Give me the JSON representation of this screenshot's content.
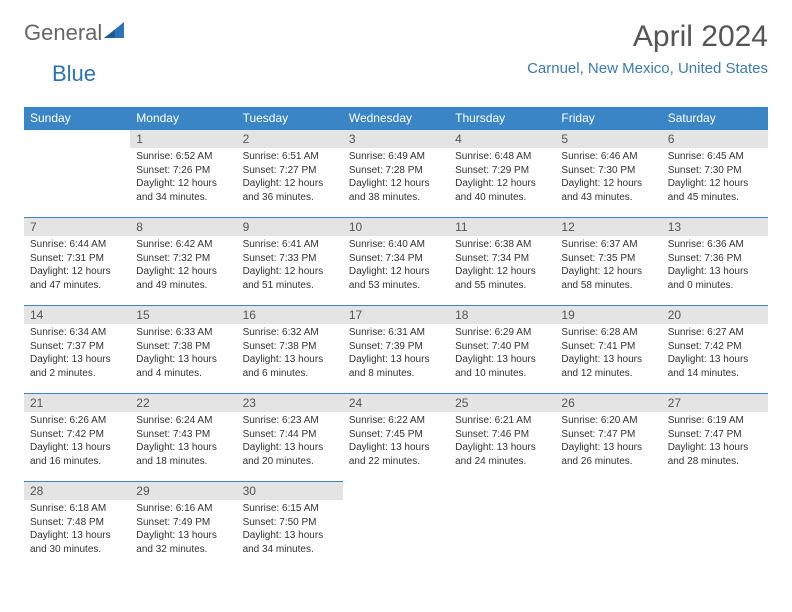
{
  "logo": {
    "text1": "General",
    "text2": "Blue"
  },
  "title": "April 2024",
  "location": "Carnuel, New Mexico, United States",
  "colors": {
    "header_bg": "#3a85c6",
    "header_text": "#ffffff",
    "daynum_bg": "#e4e4e4",
    "border": "#3a85c6",
    "location_color": "#3b7bb5",
    "title_color": "#555555"
  },
  "weekdays": [
    "Sunday",
    "Monday",
    "Tuesday",
    "Wednesday",
    "Thursday",
    "Friday",
    "Saturday"
  ],
  "weeks": [
    [
      {
        "day": "",
        "sunrise": "",
        "sunset": "",
        "daylight1": "",
        "daylight2": ""
      },
      {
        "day": "1",
        "sunrise": "Sunrise: 6:52 AM",
        "sunset": "Sunset: 7:26 PM",
        "daylight1": "Daylight: 12 hours",
        "daylight2": "and 34 minutes."
      },
      {
        "day": "2",
        "sunrise": "Sunrise: 6:51 AM",
        "sunset": "Sunset: 7:27 PM",
        "daylight1": "Daylight: 12 hours",
        "daylight2": "and 36 minutes."
      },
      {
        "day": "3",
        "sunrise": "Sunrise: 6:49 AM",
        "sunset": "Sunset: 7:28 PM",
        "daylight1": "Daylight: 12 hours",
        "daylight2": "and 38 minutes."
      },
      {
        "day": "4",
        "sunrise": "Sunrise: 6:48 AM",
        "sunset": "Sunset: 7:29 PM",
        "daylight1": "Daylight: 12 hours",
        "daylight2": "and 40 minutes."
      },
      {
        "day": "5",
        "sunrise": "Sunrise: 6:46 AM",
        "sunset": "Sunset: 7:30 PM",
        "daylight1": "Daylight: 12 hours",
        "daylight2": "and 43 minutes."
      },
      {
        "day": "6",
        "sunrise": "Sunrise: 6:45 AM",
        "sunset": "Sunset: 7:30 PM",
        "daylight1": "Daylight: 12 hours",
        "daylight2": "and 45 minutes."
      }
    ],
    [
      {
        "day": "7",
        "sunrise": "Sunrise: 6:44 AM",
        "sunset": "Sunset: 7:31 PM",
        "daylight1": "Daylight: 12 hours",
        "daylight2": "and 47 minutes."
      },
      {
        "day": "8",
        "sunrise": "Sunrise: 6:42 AM",
        "sunset": "Sunset: 7:32 PM",
        "daylight1": "Daylight: 12 hours",
        "daylight2": "and 49 minutes."
      },
      {
        "day": "9",
        "sunrise": "Sunrise: 6:41 AM",
        "sunset": "Sunset: 7:33 PM",
        "daylight1": "Daylight: 12 hours",
        "daylight2": "and 51 minutes."
      },
      {
        "day": "10",
        "sunrise": "Sunrise: 6:40 AM",
        "sunset": "Sunset: 7:34 PM",
        "daylight1": "Daylight: 12 hours",
        "daylight2": "and 53 minutes."
      },
      {
        "day": "11",
        "sunrise": "Sunrise: 6:38 AM",
        "sunset": "Sunset: 7:34 PM",
        "daylight1": "Daylight: 12 hours",
        "daylight2": "and 55 minutes."
      },
      {
        "day": "12",
        "sunrise": "Sunrise: 6:37 AM",
        "sunset": "Sunset: 7:35 PM",
        "daylight1": "Daylight: 12 hours",
        "daylight2": "and 58 minutes."
      },
      {
        "day": "13",
        "sunrise": "Sunrise: 6:36 AM",
        "sunset": "Sunset: 7:36 PM",
        "daylight1": "Daylight: 13 hours",
        "daylight2": "and 0 minutes."
      }
    ],
    [
      {
        "day": "14",
        "sunrise": "Sunrise: 6:34 AM",
        "sunset": "Sunset: 7:37 PM",
        "daylight1": "Daylight: 13 hours",
        "daylight2": "and 2 minutes."
      },
      {
        "day": "15",
        "sunrise": "Sunrise: 6:33 AM",
        "sunset": "Sunset: 7:38 PM",
        "daylight1": "Daylight: 13 hours",
        "daylight2": "and 4 minutes."
      },
      {
        "day": "16",
        "sunrise": "Sunrise: 6:32 AM",
        "sunset": "Sunset: 7:38 PM",
        "daylight1": "Daylight: 13 hours",
        "daylight2": "and 6 minutes."
      },
      {
        "day": "17",
        "sunrise": "Sunrise: 6:31 AM",
        "sunset": "Sunset: 7:39 PM",
        "daylight1": "Daylight: 13 hours",
        "daylight2": "and 8 minutes."
      },
      {
        "day": "18",
        "sunrise": "Sunrise: 6:29 AM",
        "sunset": "Sunset: 7:40 PM",
        "daylight1": "Daylight: 13 hours",
        "daylight2": "and 10 minutes."
      },
      {
        "day": "19",
        "sunrise": "Sunrise: 6:28 AM",
        "sunset": "Sunset: 7:41 PM",
        "daylight1": "Daylight: 13 hours",
        "daylight2": "and 12 minutes."
      },
      {
        "day": "20",
        "sunrise": "Sunrise: 6:27 AM",
        "sunset": "Sunset: 7:42 PM",
        "daylight1": "Daylight: 13 hours",
        "daylight2": "and 14 minutes."
      }
    ],
    [
      {
        "day": "21",
        "sunrise": "Sunrise: 6:26 AM",
        "sunset": "Sunset: 7:42 PM",
        "daylight1": "Daylight: 13 hours",
        "daylight2": "and 16 minutes."
      },
      {
        "day": "22",
        "sunrise": "Sunrise: 6:24 AM",
        "sunset": "Sunset: 7:43 PM",
        "daylight1": "Daylight: 13 hours",
        "daylight2": "and 18 minutes."
      },
      {
        "day": "23",
        "sunrise": "Sunrise: 6:23 AM",
        "sunset": "Sunset: 7:44 PM",
        "daylight1": "Daylight: 13 hours",
        "daylight2": "and 20 minutes."
      },
      {
        "day": "24",
        "sunrise": "Sunrise: 6:22 AM",
        "sunset": "Sunset: 7:45 PM",
        "daylight1": "Daylight: 13 hours",
        "daylight2": "and 22 minutes."
      },
      {
        "day": "25",
        "sunrise": "Sunrise: 6:21 AM",
        "sunset": "Sunset: 7:46 PM",
        "daylight1": "Daylight: 13 hours",
        "daylight2": "and 24 minutes."
      },
      {
        "day": "26",
        "sunrise": "Sunrise: 6:20 AM",
        "sunset": "Sunset: 7:47 PM",
        "daylight1": "Daylight: 13 hours",
        "daylight2": "and 26 minutes."
      },
      {
        "day": "27",
        "sunrise": "Sunrise: 6:19 AM",
        "sunset": "Sunset: 7:47 PM",
        "daylight1": "Daylight: 13 hours",
        "daylight2": "and 28 minutes."
      }
    ],
    [
      {
        "day": "28",
        "sunrise": "Sunrise: 6:18 AM",
        "sunset": "Sunset: 7:48 PM",
        "daylight1": "Daylight: 13 hours",
        "daylight2": "and 30 minutes."
      },
      {
        "day": "29",
        "sunrise": "Sunrise: 6:16 AM",
        "sunset": "Sunset: 7:49 PM",
        "daylight1": "Daylight: 13 hours",
        "daylight2": "and 32 minutes."
      },
      {
        "day": "30",
        "sunrise": "Sunrise: 6:15 AM",
        "sunset": "Sunset: 7:50 PM",
        "daylight1": "Daylight: 13 hours",
        "daylight2": "and 34 minutes."
      },
      {
        "day": "",
        "sunrise": "",
        "sunset": "",
        "daylight1": "",
        "daylight2": ""
      },
      {
        "day": "",
        "sunrise": "",
        "sunset": "",
        "daylight1": "",
        "daylight2": ""
      },
      {
        "day": "",
        "sunrise": "",
        "sunset": "",
        "daylight1": "",
        "daylight2": ""
      },
      {
        "day": "",
        "sunrise": "",
        "sunset": "",
        "daylight1": "",
        "daylight2": ""
      }
    ]
  ]
}
